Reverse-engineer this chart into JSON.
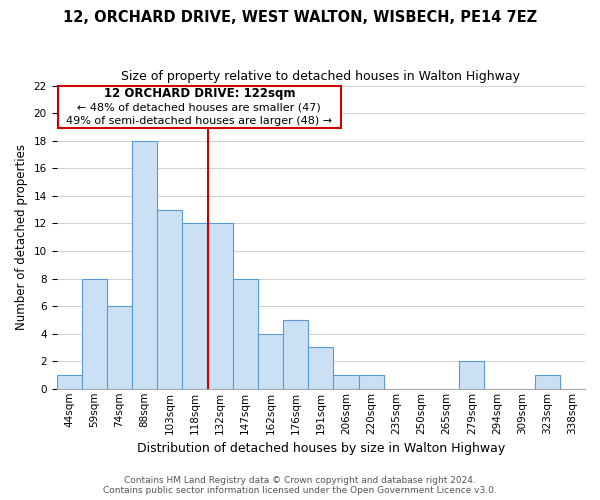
{
  "title": "12, ORCHARD DRIVE, WEST WALTON, WISBECH, PE14 7EZ",
  "subtitle": "Size of property relative to detached houses in Walton Highway",
  "xlabel": "Distribution of detached houses by size in Walton Highway",
  "ylabel": "Number of detached properties",
  "footer_lines": [
    "Contains HM Land Registry data © Crown copyright and database right 2024.",
    "Contains public sector information licensed under the Open Government Licence v3.0."
  ],
  "bin_labels": [
    "44sqm",
    "59sqm",
    "74sqm",
    "88sqm",
    "103sqm",
    "118sqm",
    "132sqm",
    "147sqm",
    "162sqm",
    "176sqm",
    "191sqm",
    "206sqm",
    "220sqm",
    "235sqm",
    "250sqm",
    "265sqm",
    "279sqm",
    "294sqm",
    "309sqm",
    "323sqm",
    "338sqm"
  ],
  "bar_values": [
    1,
    8,
    6,
    18,
    13,
    12,
    12,
    8,
    4,
    5,
    3,
    1,
    1,
    0,
    0,
    0,
    2,
    0,
    0,
    1,
    0
  ],
  "bar_color": "#cce0f5",
  "bar_edge_color": "#5b9bd5",
  "reference_line_x": 5.5,
  "reference_line_color": "#cc0000",
  "annotation": {
    "title": "12 ORCHARD DRIVE: 122sqm",
    "line1": "← 48% of detached houses are smaller (47)",
    "line2": "49% of semi-detached houses are larger (48) →"
  },
  "ylim": [
    0,
    22
  ],
  "yticks": [
    0,
    2,
    4,
    6,
    8,
    10,
    12,
    14,
    16,
    18,
    20,
    22
  ],
  "grid_color": "#d0d0d0",
  "title_fontsize": 10.5,
  "subtitle_fontsize": 9,
  "ylabel_fontsize": 8.5,
  "xlabel_fontsize": 9,
  "footer_fontsize": 6.5,
  "tick_fontsize": 7.5
}
